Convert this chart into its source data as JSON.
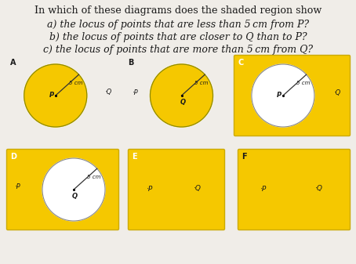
{
  "bg_color": "#f0ede8",
  "yellow": "#F5C800",
  "white": "#FFFFFF",
  "text_color": "#1a1a1a",
  "title_line": "In which of these diagrams does the shaded region show",
  "question_a": "a) the locus of points that are less than 5 cm from P?",
  "question_b": "b) the locus of points that are closer to Q than to P?",
  "question_c": "c) the locus of points that are more than 5 cm from Q?",
  "diagrams": [
    {
      "label": "A",
      "type": "yellow_circle_white_bg",
      "circle_center": "P"
    },
    {
      "label": "B",
      "type": "yellow_circle_white_bg",
      "circle_center": "Q"
    },
    {
      "label": "C",
      "type": "yellow_rect_white_circle",
      "circle_center": "P"
    },
    {
      "label": "D",
      "type": "yellow_rect_white_circle",
      "circle_center": "Q"
    },
    {
      "label": "E",
      "type": "yellow_rect_only"
    },
    {
      "label": "F",
      "type": "yellow_rect_only"
    }
  ]
}
